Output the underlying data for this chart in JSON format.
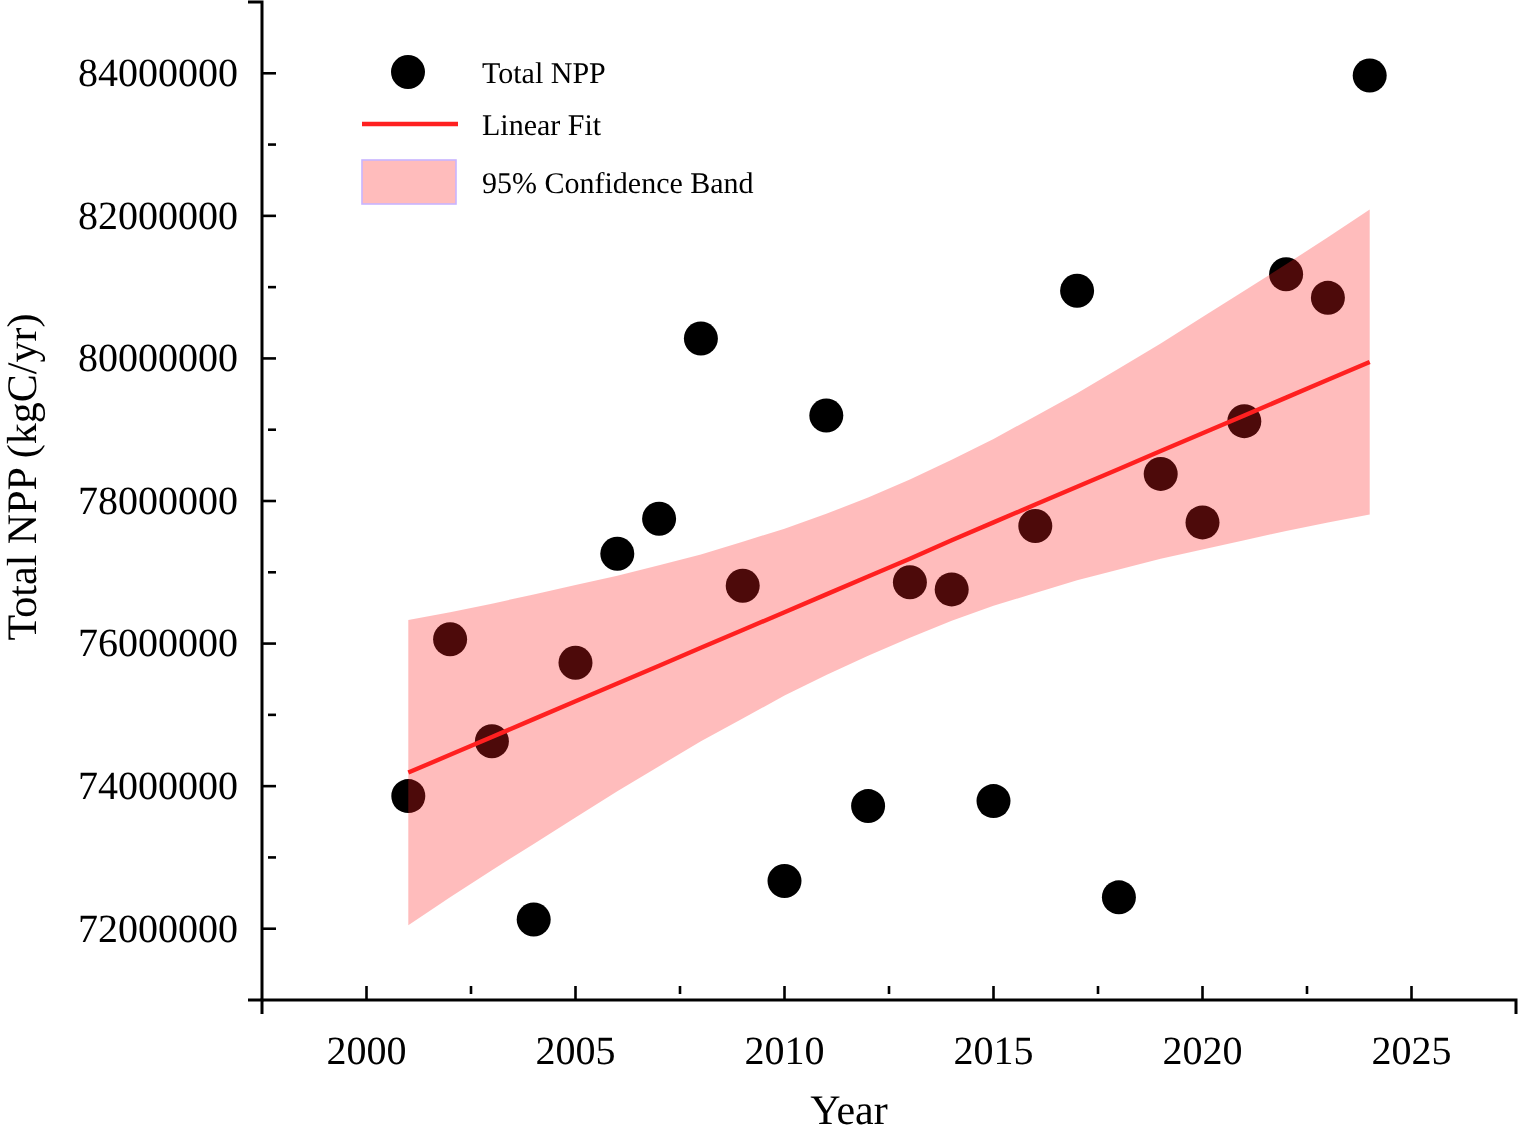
{
  "chart_data": {
    "type": "scatter",
    "xlabel": "Year",
    "ylabel": "Total NPP (kgC/yr)",
    "xlim": [
      1997.5,
      2027.5
    ],
    "xticks": [
      2000,
      {
        "value": 2002.5,
        "label": null
      },
      2005,
      {
        "value": 2007.5,
        "label": null
      },
      2010,
      {
        "value": 2012.5,
        "label": null
      },
      2015,
      {
        "value": 2017.5,
        "label": null
      },
      2020,
      {
        "value": 2022.5,
        "label": null
      },
      2025
    ],
    "ylim": [
      71000000,
      85000000
    ],
    "yticks": [
      72000000,
      {
        "value": 73000000,
        "label": null
      },
      74000000,
      {
        "value": 75000000,
        "label": null
      },
      76000000,
      {
        "value": 77000000,
        "label": null
      },
      78000000,
      {
        "value": 79000000,
        "label": null
      },
      80000000,
      {
        "value": 81000000,
        "label": null
      },
      82000000,
      {
        "value": 83000000,
        "label": null
      },
      84000000
    ],
    "legend": "top left",
    "grid": false,
    "annotations": [
      "95% Confidence Band"
    ],
    "series": [
      {
        "name": "Total NPP",
        "marker": "circle",
        "color": "#000000",
        "x": [
          2001,
          2002,
          2003,
          2004,
          2005,
          2006,
          2007,
          2008,
          2009,
          2010,
          2011,
          2012,
          2013,
          2014,
          2015,
          2016,
          2017,
          2018,
          2019,
          2020,
          2021,
          2022,
          2023,
          2024
        ],
        "values": [
          73860000,
          76060000,
          74630000,
          72130000,
          75730000,
          77260000,
          77750000,
          80280000,
          76810000,
          72670000,
          79200000,
          73720000,
          76860000,
          76760000,
          73790000,
          77650000,
          80950000,
          72440000,
          78380000,
          77700000,
          79120000,
          81180000,
          80850000,
          83970000
        ]
      },
      {
        "name": "Linear Fit",
        "type": "line",
        "color": "#ff2020",
        "line_style": "solid",
        "marker": "none",
        "x": [
          2001,
          2002,
          2003,
          2004,
          2005,
          2006,
          2007,
          2008,
          2009,
          2010,
          2011,
          2012,
          2013,
          2014,
          2015,
          2016,
          2017,
          2018,
          2019,
          2020,
          2021,
          2022,
          2023,
          2024
        ],
        "values": [
          74190000,
          74440000,
          74690000,
          74940000,
          75190000,
          75440000,
          75690000,
          75940000,
          76190000,
          76440000,
          76690000,
          76940000,
          77190000,
          77450000,
          77700000,
          77950000,
          78200000,
          78450000,
          78700000,
          78950000,
          79200000,
          79450000,
          79700000,
          79950000
        ],
        "lower": [
          72050000,
          72440000,
          72820000,
          73190000,
          73560000,
          73930000,
          74280000,
          74630000,
          74950000,
          75270000,
          75560000,
          75830000,
          76080000,
          76320000,
          76530000,
          76710000,
          76890000,
          77040000,
          77190000,
          77320000,
          77450000,
          77580000,
          77700000,
          77810000
        ],
        "upper": [
          76330000,
          76440000,
          76560000,
          76690000,
          76820000,
          76950000,
          77100000,
          77250000,
          77430000,
          77610000,
          77820000,
          78050000,
          78300000,
          78580000,
          78870000,
          79190000,
          79510000,
          79860000,
          80210000,
          80580000,
          80950000,
          81320000,
          81700000,
          82090000
        ]
      }
    ]
  }
}
